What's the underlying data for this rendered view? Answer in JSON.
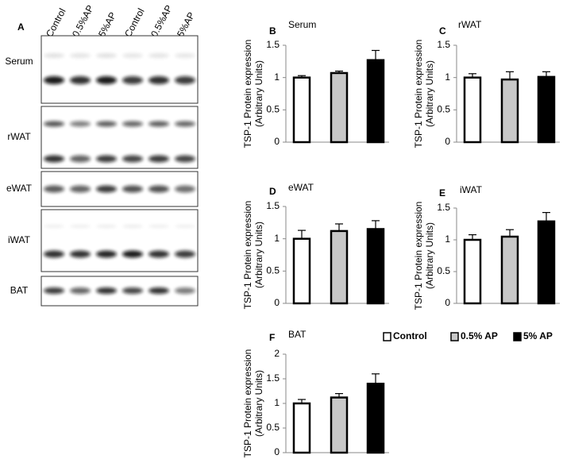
{
  "blot": {
    "panel_label": "A",
    "lanes": [
      "Control",
      "0.5%AP",
      "5%AP",
      "Control",
      "0.5%AP",
      "5%AP"
    ],
    "rows": [
      "Serum",
      "rWAT",
      "eWAT",
      "iWAT",
      "BAT"
    ]
  },
  "chart_data": [
    {
      "type": "bar",
      "panel_label": "B",
      "title": "Serum",
      "ylabel": [
        "TSP-1 Protein expression",
        "(Arbitrary Units)"
      ],
      "values": [
        1.0,
        1.07,
        1.27
      ],
      "errors": [
        0.03,
        0.03,
        0.15
      ],
      "colors": [
        "#ffffff",
        "#c8c8c8",
        "#000000"
      ],
      "ylim": [
        0,
        1.5
      ],
      "yticks": [
        0,
        0.5,
        1,
        1.5
      ]
    },
    {
      "type": "bar",
      "panel_label": "C",
      "title": "rWAT",
      "ylabel": [
        "TSP-1 Protein expression",
        "(Arbitrary Units)"
      ],
      "values": [
        1.0,
        0.97,
        1.01
      ],
      "errors": [
        0.06,
        0.12,
        0.08
      ],
      "colors": [
        "#ffffff",
        "#c8c8c8",
        "#000000"
      ],
      "ylim": [
        0,
        1.5
      ],
      "yticks": [
        0,
        0.5,
        1,
        1.5
      ]
    },
    {
      "type": "bar",
      "panel_label": "D",
      "title": "eWAT",
      "ylabel": [
        "TSP-1 Protein expression",
        "(Arbitrary Units)"
      ],
      "values": [
        1.0,
        1.12,
        1.15
      ],
      "errors": [
        0.13,
        0.11,
        0.13
      ],
      "colors": [
        "#ffffff",
        "#c8c8c8",
        "#000000"
      ],
      "ylim": [
        0,
        1.5
      ],
      "yticks": [
        0,
        0.5,
        1,
        1.5
      ]
    },
    {
      "type": "bar",
      "panel_label": "E",
      "title": "iWAT",
      "ylabel": [
        "TSP-1 Protein expression",
        "(Arbitrary Units)"
      ],
      "values": [
        1.0,
        1.05,
        1.29
      ],
      "errors": [
        0.08,
        0.11,
        0.14
      ],
      "colors": [
        "#ffffff",
        "#c8c8c8",
        "#000000"
      ],
      "ylim": [
        0,
        1.5
      ],
      "yticks": [
        0,
        0.5,
        1,
        1.5
      ]
    },
    {
      "type": "bar",
      "panel_label": "F",
      "title": "BAT",
      "ylabel": [
        "TSP-1 Protein expression",
        "(Arbitrary Units)"
      ],
      "values": [
        1.0,
        1.12,
        1.4
      ],
      "errors": [
        0.08,
        0.08,
        0.2
      ],
      "colors": [
        "#ffffff",
        "#c8c8c8",
        "#000000"
      ],
      "ylim": [
        0,
        2
      ],
      "yticks": [
        0,
        0.5,
        1,
        1.5,
        2
      ],
      "legend": [
        "Control",
        "0.5% AP",
        "5% AP"
      ]
    }
  ]
}
